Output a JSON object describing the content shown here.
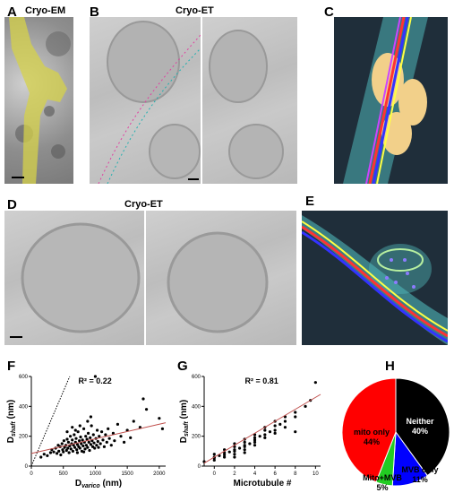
{
  "panels": {
    "A": {
      "letter": "A",
      "title": "Cryo-EM"
    },
    "B": {
      "letter": "B",
      "title": "Cryo-ET"
    },
    "C": {
      "letter": "C"
    },
    "D": {
      "letter": "D",
      "title": "Cryo-ET"
    },
    "E": {
      "letter": "E"
    },
    "F": {
      "letter": "F"
    },
    "G": {
      "letter": "G"
    },
    "H": {
      "letter": "H"
    }
  },
  "colors": {
    "highlight": "#d6d24a",
    "segmentation_bg": "#1f2e3a",
    "fit_line": "#c0504d",
    "mito": "#ff0000",
    "neither": "#000000",
    "mvb": "#0000ff",
    "mito_mvb": "#22cc22"
  },
  "chart_data": [
    {
      "panel": "F",
      "type": "scatter",
      "annotation": "R² = 0.22",
      "xlabel_main": "D",
      "xlabel_sub": "varico",
      "xlabel_unit": " (nm)",
      "ylabel_main": "D",
      "ylabel_sub": "shaft",
      "ylabel_unit": " (nm)",
      "xlim": [
        0,
        2100
      ],
      "ylim": [
        0,
        600
      ],
      "xticks": [
        0,
        500,
        1000,
        1500,
        2000
      ],
      "yticks": [
        0,
        200,
        400,
        600
      ],
      "fit": {
        "x": [
          0,
          2100
        ],
        "y": [
          85,
          290
        ]
      },
      "identity_line": {
        "x": [
          0,
          600
        ],
        "y": [
          0,
          600
        ]
      },
      "points": [
        [
          150,
          60
        ],
        [
          200,
          80
        ],
        [
          250,
          70
        ],
        [
          300,
          90
        ],
        [
          320,
          110
        ],
        [
          350,
          95
        ],
        [
          380,
          120
        ],
        [
          400,
          85
        ],
        [
          420,
          140
        ],
        [
          430,
          100
        ],
        [
          450,
          130
        ],
        [
          460,
          75
        ],
        [
          480,
          150
        ],
        [
          490,
          110
        ],
        [
          500,
          95
        ],
        [
          510,
          170
        ],
        [
          520,
          125
        ],
        [
          540,
          140
        ],
        [
          550,
          105
        ],
        [
          560,
          180
        ],
        [
          570,
          120
        ],
        [
          580,
          160
        ],
        [
          590,
          90
        ],
        [
          600,
          135
        ],
        [
          610,
          200
        ],
        [
          620,
          115
        ],
        [
          630,
          150
        ],
        [
          640,
          175
        ],
        [
          650,
          100
        ],
        [
          660,
          140
        ],
        [
          670,
          210
        ],
        [
          680,
          125
        ],
        [
          690,
          160
        ],
        [
          700,
          185
        ],
        [
          710,
          110
        ],
        [
          720,
          145
        ],
        [
          730,
          230
        ],
        [
          740,
          130
        ],
        [
          750,
          170
        ],
        [
          760,
          120
        ],
        [
          770,
          195
        ],
        [
          780,
          150
        ],
        [
          790,
          100
        ],
        [
          800,
          175
        ],
        [
          810,
          135
        ],
        [
          820,
          250
        ],
        [
          830,
          160
        ],
        [
          840,
          115
        ],
        [
          850,
          200
        ],
        [
          860,
          140
        ],
        [
          870,
          180
        ],
        [
          880,
          125
        ],
        [
          890,
          220
        ],
        [
          900,
          160
        ],
        [
          910,
          105
        ],
        [
          920,
          190
        ],
        [
          930,
          145
        ],
        [
          940,
          270
        ],
        [
          950,
          170
        ],
        [
          960,
          130
        ],
        [
          970,
          210
        ],
        [
          980,
          155
        ],
        [
          990,
          120
        ],
        [
          1000,
          600
        ],
        [
          1010,
          185
        ],
        [
          1020,
          140
        ],
        [
          1030,
          240
        ],
        [
          1040,
          165
        ],
        [
          1050,
          125
        ],
        [
          1060,
          200
        ],
        [
          1080,
          150
        ],
        [
          1100,
          230
        ],
        [
          1120,
          175
        ],
        [
          1140,
          130
        ],
        [
          1160,
          210
        ],
        [
          1180,
          160
        ],
        [
          1200,
          250
        ],
        [
          1220,
          185
        ],
        [
          1250,
          140
        ],
        [
          1280,
          220
        ],
        [
          1300,
          170
        ],
        [
          1350,
          280
        ],
        [
          1400,
          200
        ],
        [
          1450,
          160
        ],
        [
          1500,
          240
        ],
        [
          1550,
          190
        ],
        [
          1600,
          300
        ],
        [
          1700,
          260
        ],
        [
          1750,
          450
        ],
        [
          1800,
          380
        ],
        [
          2000,
          320
        ],
        [
          2050,
          250
        ],
        [
          560,
          230
        ],
        [
          640,
          260
        ],
        [
          720,
          90
        ],
        [
          880,
          300
        ],
        [
          760,
          270
        ],
        [
          690,
          240
        ],
        [
          930,
          330
        ],
        [
          820,
          95
        ]
      ]
    },
    {
      "panel": "G",
      "type": "scatter",
      "annotation": "R² = 0.81",
      "xlabel_main": "Microtubule #",
      "ylabel_main": "D",
      "ylabel_sub": "shaft",
      "ylabel_unit": " (nm)",
      "xlim": [
        -1,
        10.5
      ],
      "ylim": [
        0,
        600
      ],
      "xticks": [
        0,
        2,
        4,
        6,
        8,
        10
      ],
      "yticks": [
        0,
        200,
        400,
        600
      ],
      "fit": {
        "x": [
          -1,
          10.5
        ],
        "y": [
          20,
          480
        ]
      },
      "points": [
        [
          -1,
          30
        ],
        [
          0,
          40
        ],
        [
          0,
          60
        ],
        [
          0,
          80
        ],
        [
          0,
          55
        ],
        [
          0.5,
          70
        ],
        [
          1,
          60
        ],
        [
          1,
          90
        ],
        [
          1,
          110
        ],
        [
          1,
          75
        ],
        [
          1.5,
          95
        ],
        [
          2,
          80
        ],
        [
          2,
          110
        ],
        [
          2,
          130
        ],
        [
          2,
          100
        ],
        [
          2,
          150
        ],
        [
          2.5,
          120
        ],
        [
          3,
          110
        ],
        [
          3,
          140
        ],
        [
          3,
          160
        ],
        [
          3,
          130
        ],
        [
          3,
          180
        ],
        [
          3.5,
          150
        ],
        [
          4,
          160
        ],
        [
          4,
          190
        ],
        [
          4,
          210
        ],
        [
          4,
          175
        ],
        [
          4.5,
          200
        ],
        [
          5,
          210
        ],
        [
          5,
          240
        ],
        [
          5,
          190
        ],
        [
          5,
          260
        ],
        [
          5.5,
          230
        ],
        [
          6,
          240
        ],
        [
          6,
          270
        ],
        [
          6,
          300
        ],
        [
          6.5,
          280
        ],
        [
          7,
          300
        ],
        [
          7,
          330
        ],
        [
          8,
          330
        ],
        [
          8,
          360
        ],
        [
          8,
          230
        ],
        [
          9,
          400
        ],
        [
          9.5,
          440
        ],
        [
          10,
          560
        ],
        [
          6,
          220
        ],
        [
          7,
          260
        ],
        [
          3,
          90
        ],
        [
          2,
          60
        ],
        [
          4,
          140
        ]
      ]
    },
    {
      "panel": "H",
      "type": "pie",
      "slices": [
        {
          "label": "Neither",
          "pct_label": "40%",
          "value": 40,
          "color": "#000000"
        },
        {
          "label": "MVB only",
          "pct_label": "11%",
          "value": 11,
          "color": "#0000ff"
        },
        {
          "label": "Mito+MVB",
          "pct_label": "5%",
          "value": 5,
          "color": "#22cc22"
        },
        {
          "label": "mito only",
          "pct_label": "44%",
          "value": 44,
          "color": "#ff0000"
        }
      ]
    }
  ]
}
